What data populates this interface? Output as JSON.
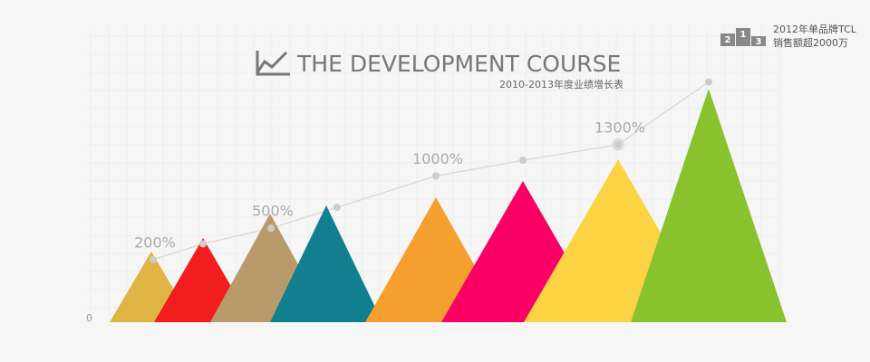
{
  "chart_data": {
    "type": "triangle",
    "title": "THE DEVELOPMENT COURSE",
    "subtitle": "2010-2013年度业绩增长表",
    "annotation": [
      "2012年单品牌TCL",
      "销售额超2000万"
    ],
    "podium": [
      "2",
      "1",
      "3"
    ],
    "values": [
      26,
      31,
      40,
      43,
      46,
      52,
      60,
      86
    ],
    "colors": [
      "#e0b444",
      "#f21d1d",
      "#b99a6a",
      "#117f8f",
      "#f5a02e",
      "#fb0064",
      "#fcd343",
      "#88c22c"
    ],
    "ylim": [
      0,
      100
    ],
    "yticks": [
      0
    ],
    "line": {
      "values": [
        200,
        350,
        500,
        700,
        1000,
        1150,
        1300,
        1900
      ],
      "value_labels": [
        "200%",
        null,
        "500%",
        null,
        "1000%",
        null,
        "1300%",
        null
      ],
      "color": "#d4d4d4",
      "axis": "y2"
    },
    "y2lim": [
      -400,
      2200
    ],
    "grid": true
  }
}
